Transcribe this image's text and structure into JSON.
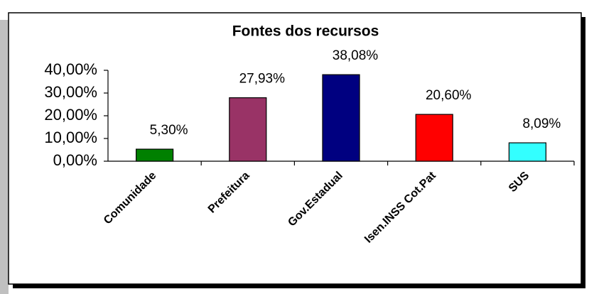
{
  "chart_data": {
    "type": "bar",
    "title": "Fontes dos recursos",
    "categories": [
      "Comunidade",
      "Prefeitura",
      "Gov.Estadual",
      "Isen.INSS Cot.Pat",
      "SUS"
    ],
    "values": [
      5.3,
      27.93,
      38.08,
      20.6,
      8.09
    ],
    "value_labels": [
      "5,30%",
      "27,93%",
      "38,08%",
      "20,60%",
      "8,09%"
    ],
    "colors": [
      "#008000",
      "#993366",
      "#000080",
      "#ff0000",
      "#33ffff"
    ],
    "ylim": [
      0,
      40
    ],
    "yticks": [
      {
        "value": 0,
        "label": "0,00%"
      },
      {
        "value": 10,
        "label": "10,00%"
      },
      {
        "value": 20,
        "label": "20,00%"
      },
      {
        "value": 30,
        "label": "30,00%"
      },
      {
        "value": 40,
        "label": "40,00%"
      }
    ],
    "grid": false
  }
}
